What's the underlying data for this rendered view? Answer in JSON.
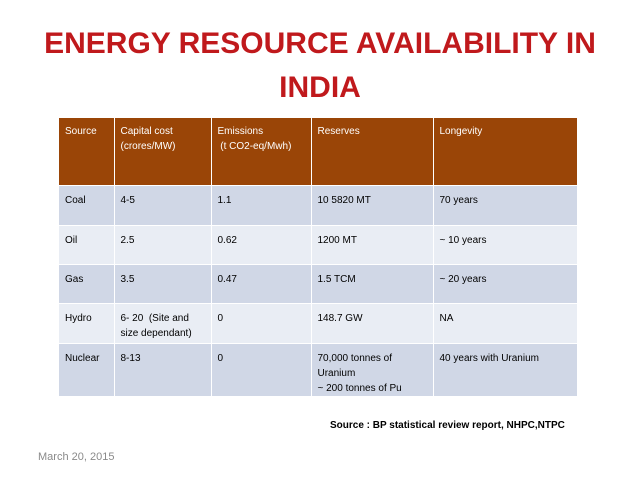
{
  "title": "ENERGY RESOURCE AVAILABILITY IN INDIA",
  "table": {
    "headers": [
      [
        "Source"
      ],
      [
        "Capital cost",
        "(crores/MW)"
      ],
      [
        "Emissions",
        " (t CO2-eq/Mwh)"
      ],
      [
        "Reserves"
      ],
      [
        "Longevity"
      ]
    ],
    "rows": [
      [
        [
          "Coal"
        ],
        [
          "4-5"
        ],
        [
          "1.1"
        ],
        [
          "10 5820 MT"
        ],
        [
          "70 years"
        ]
      ],
      [
        [
          "Oil"
        ],
        [
          "2.5"
        ],
        [
          "0.62"
        ],
        [
          "1200 MT"
        ],
        [
          "~ 10 years"
        ]
      ],
      [
        [
          "Gas"
        ],
        [
          "3.5"
        ],
        [
          "0.47"
        ],
        [
          "1.5 TCM"
        ],
        [
          "~ 20 years"
        ]
      ],
      [
        [
          "Hydro"
        ],
        [
          "6- 20  (Site and",
          "size dependant)"
        ],
        [
          "0"
        ],
        [
          "148.7 GW"
        ],
        [
          "NA"
        ]
      ],
      [
        [
          "Nuclear"
        ],
        [
          "8-13"
        ],
        [
          "0"
        ],
        [
          "70,000 tonnes of",
          "Uranium",
          "~ 200 tonnes of Pu"
        ],
        [
          "40 years with Uranium"
        ]
      ]
    ]
  },
  "source_note": "Source : BP statistical review report, NHPC,NTPC",
  "date": "March 20, 2015",
  "colors": {
    "title": "#c0191c",
    "header_bg": "#9a4507",
    "row_odd": "#d0d7e6",
    "row_even": "#e9edf4"
  }
}
